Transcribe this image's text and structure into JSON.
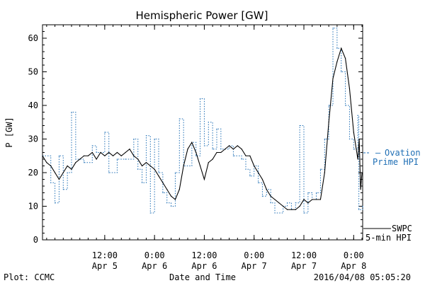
{
  "chart_data": {
    "type": "line",
    "title": "Hemispheric Power [GW]",
    "ylabel": "P [GW]",
    "xlabel": "Date and Time",
    "ylim": [
      0,
      64
    ],
    "yticks": [
      0,
      10,
      20,
      30,
      40,
      50,
      60
    ],
    "xlim": [
      "2016-04-04T21:00",
      "2016-04-08T02:10"
    ],
    "xticks": [
      {
        "t": "2016-04-05T12:00",
        "line1": "12:00",
        "line2": "Apr 5"
      },
      {
        "t": "2016-04-06T00:00",
        "line1": "0:00",
        "line2": "Apr 6"
      },
      {
        "t": "2016-04-06T12:00",
        "line1": "12:00",
        "line2": "Apr 6"
      },
      {
        "t": "2016-04-07T00:00",
        "line1": "0:00",
        "line2": "Apr 7"
      },
      {
        "t": "2016-04-07T12:00",
        "line1": "12:00",
        "line2": "Apr 7"
      },
      {
        "t": "2016-04-08T00:00",
        "line1": "0:00",
        "line2": "Apr 8"
      }
    ],
    "grid": false,
    "legend_placement": "right",
    "series": [
      {
        "name": "Ovation Prime HPI",
        "legend_lines": [
          "Ovation",
          "Prime HPI"
        ],
        "style": "dotted-steps",
        "color": "#1f6fb5",
        "points": [
          [
            "2016-04-04T21:00",
            25
          ],
          [
            "2016-04-04T23:00",
            17
          ],
          [
            "2016-04-05T00:00",
            11
          ],
          [
            "2016-04-05T01:00",
            25
          ],
          [
            "2016-04-05T02:00",
            15
          ],
          [
            "2016-04-05T03:00",
            20
          ],
          [
            "2016-04-05T04:00",
            38
          ],
          [
            "2016-04-05T05:00",
            24
          ],
          [
            "2016-04-05T07:00",
            23
          ],
          [
            "2016-04-05T09:00",
            28
          ],
          [
            "2016-04-05T10:00",
            26
          ],
          [
            "2016-04-05T12:00",
            32
          ],
          [
            "2016-04-05T13:00",
            20
          ],
          [
            "2016-04-05T15:00",
            24
          ],
          [
            "2016-04-05T17:00",
            24
          ],
          [
            "2016-04-05T19:00",
            30
          ],
          [
            "2016-04-05T20:00",
            21
          ],
          [
            "2016-04-05T21:00",
            17
          ],
          [
            "2016-04-05T22:00",
            31
          ],
          [
            "2016-04-05T23:00",
            8
          ],
          [
            "2016-04-06T00:00",
            30
          ],
          [
            "2016-04-06T01:00",
            20
          ],
          [
            "2016-04-06T02:00",
            14
          ],
          [
            "2016-04-06T03:00",
            11
          ],
          [
            "2016-04-06T04:00",
            10
          ],
          [
            "2016-04-06T05:00",
            20
          ],
          [
            "2016-04-06T06:00",
            36
          ],
          [
            "2016-04-06T07:00",
            22
          ],
          [
            "2016-04-06T09:00",
            29
          ],
          [
            "2016-04-06T10:00",
            25
          ],
          [
            "2016-04-06T11:00",
            42
          ],
          [
            "2016-04-06T12:00",
            28
          ],
          [
            "2016-04-06T13:00",
            35
          ],
          [
            "2016-04-06T14:00",
            27
          ],
          [
            "2016-04-06T15:00",
            33
          ],
          [
            "2016-04-06T16:00",
            27
          ],
          [
            "2016-04-06T18:00",
            28
          ],
          [
            "2016-04-06T19:00",
            25
          ],
          [
            "2016-04-06T21:00",
            24
          ],
          [
            "2016-04-06T22:00",
            21
          ],
          [
            "2016-04-06T23:00",
            19
          ],
          [
            "2016-04-07T00:00",
            22
          ],
          [
            "2016-04-07T01:00",
            17
          ],
          [
            "2016-04-07T02:00",
            13
          ],
          [
            "2016-04-07T03:00",
            15
          ],
          [
            "2016-04-07T04:00",
            11
          ],
          [
            "2016-04-07T05:00",
            8
          ],
          [
            "2016-04-07T07:00",
            10
          ],
          [
            "2016-04-07T08:00",
            11
          ],
          [
            "2016-04-07T09:00",
            9
          ],
          [
            "2016-04-07T10:00",
            11
          ],
          [
            "2016-04-07T11:00",
            34
          ],
          [
            "2016-04-07T12:00",
            8
          ],
          [
            "2016-04-07T13:00",
            14
          ],
          [
            "2016-04-07T14:00",
            12
          ],
          [
            "2016-04-07T15:00",
            14
          ],
          [
            "2016-04-07T16:00",
            21
          ],
          [
            "2016-04-07T17:00",
            30
          ],
          [
            "2016-04-07T18:00",
            40
          ],
          [
            "2016-04-07T19:00",
            63
          ],
          [
            "2016-04-07T20:00",
            57
          ],
          [
            "2016-04-07T21:00",
            50
          ],
          [
            "2016-04-07T22:00",
            40
          ],
          [
            "2016-04-07T23:00",
            30
          ],
          [
            "2016-04-08T00:00",
            27
          ],
          [
            "2016-04-08T01:00",
            37
          ],
          [
            "2016-04-08T01:15",
            9
          ],
          [
            "2016-04-08T02:10",
            10
          ]
        ]
      },
      {
        "name": "SWPC 5-min HPI",
        "legend_lines": [
          "SWPC",
          "5-min HPI"
        ],
        "style": "solid",
        "color": "#000000",
        "points": [
          [
            "2016-04-04T21:00",
            25
          ],
          [
            "2016-04-04T22:00",
            23
          ],
          [
            "2016-04-04T23:00",
            22
          ],
          [
            "2016-04-05T00:00",
            20
          ],
          [
            "2016-04-05T01:00",
            18
          ],
          [
            "2016-04-05T02:00",
            20
          ],
          [
            "2016-04-05T03:00",
            22
          ],
          [
            "2016-04-05T04:00",
            21
          ],
          [
            "2016-04-05T05:00",
            23
          ],
          [
            "2016-04-05T06:00",
            24
          ],
          [
            "2016-04-05T07:00",
            25
          ],
          [
            "2016-04-05T08:00",
            25
          ],
          [
            "2016-04-05T09:00",
            26
          ],
          [
            "2016-04-05T10:00",
            24
          ],
          [
            "2016-04-05T11:00",
            26
          ],
          [
            "2016-04-05T12:00",
            25
          ],
          [
            "2016-04-05T13:00",
            26
          ],
          [
            "2016-04-05T14:00",
            25
          ],
          [
            "2016-04-05T15:00",
            26
          ],
          [
            "2016-04-05T16:00",
            25
          ],
          [
            "2016-04-05T17:00",
            26
          ],
          [
            "2016-04-05T18:00",
            27
          ],
          [
            "2016-04-05T19:00",
            25
          ],
          [
            "2016-04-05T20:00",
            24
          ],
          [
            "2016-04-05T21:00",
            22
          ],
          [
            "2016-04-05T22:00",
            23
          ],
          [
            "2016-04-05T23:00",
            22
          ],
          [
            "2016-04-06T00:00",
            21
          ],
          [
            "2016-04-06T01:00",
            19
          ],
          [
            "2016-04-06T02:00",
            17
          ],
          [
            "2016-04-06T03:00",
            15
          ],
          [
            "2016-04-06T04:00",
            13
          ],
          [
            "2016-04-06T05:00",
            12
          ],
          [
            "2016-04-06T06:00",
            15
          ],
          [
            "2016-04-06T07:00",
            22
          ],
          [
            "2016-04-06T08:00",
            27
          ],
          [
            "2016-04-06T09:00",
            29
          ],
          [
            "2016-04-06T10:00",
            26
          ],
          [
            "2016-04-06T11:00",
            22
          ],
          [
            "2016-04-06T12:00",
            18
          ],
          [
            "2016-04-06T13:00",
            23
          ],
          [
            "2016-04-06T14:00",
            24
          ],
          [
            "2016-04-06T15:00",
            26
          ],
          [
            "2016-04-06T16:00",
            26
          ],
          [
            "2016-04-06T17:00",
            27
          ],
          [
            "2016-04-06T18:00",
            28
          ],
          [
            "2016-04-06T19:00",
            27
          ],
          [
            "2016-04-06T20:00",
            28
          ],
          [
            "2016-04-06T21:00",
            27
          ],
          [
            "2016-04-06T22:00",
            25
          ],
          [
            "2016-04-06T23:00",
            25
          ],
          [
            "2016-04-07T00:00",
            22
          ],
          [
            "2016-04-07T01:00",
            20
          ],
          [
            "2016-04-07T02:00",
            18
          ],
          [
            "2016-04-07T03:00",
            15
          ],
          [
            "2016-04-07T04:00",
            13
          ],
          [
            "2016-04-07T05:00",
            12
          ],
          [
            "2016-04-07T06:00",
            11
          ],
          [
            "2016-04-07T07:00",
            10
          ],
          [
            "2016-04-07T08:00",
            9
          ],
          [
            "2016-04-07T09:00",
            9
          ],
          [
            "2016-04-07T10:00",
            9
          ],
          [
            "2016-04-07T11:00",
            10
          ],
          [
            "2016-04-07T12:00",
            12
          ],
          [
            "2016-04-07T13:00",
            11
          ],
          [
            "2016-04-07T14:00",
            12
          ],
          [
            "2016-04-07T15:00",
            12
          ],
          [
            "2016-04-07T16:00",
            12
          ],
          [
            "2016-04-07T17:00",
            20
          ],
          [
            "2016-04-07T18:00",
            35
          ],
          [
            "2016-04-07T19:00",
            48
          ],
          [
            "2016-04-07T20:00",
            53
          ],
          [
            "2016-04-07T21:00",
            57
          ],
          [
            "2016-04-07T22:00",
            54
          ],
          [
            "2016-04-07T23:00",
            45
          ],
          [
            "2016-04-08T00:00",
            32
          ],
          [
            "2016-04-08T01:00",
            24
          ],
          [
            "2016-04-08T01:20",
            30
          ],
          [
            "2016-04-08T01:40",
            15
          ],
          [
            "2016-04-08T02:00",
            20
          ]
        ]
      }
    ]
  },
  "footer": {
    "left": "Plot: CCMC",
    "center": "Date and Time",
    "right": "2016/04/08 05:05:20"
  }
}
